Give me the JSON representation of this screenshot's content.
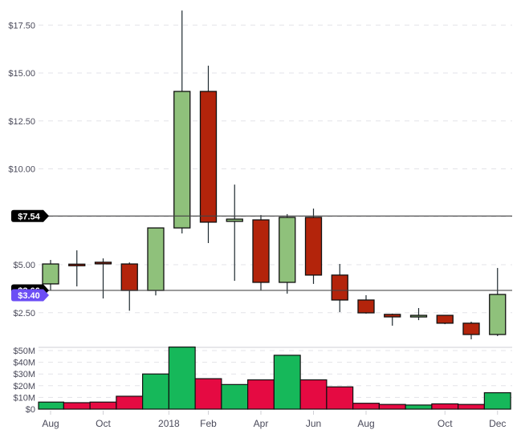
{
  "chart_data": {
    "type": "candlestick",
    "title": "",
    "xlabel": "",
    "ylabel": "",
    "price_axis": {
      "ticks": [
        "$2.50",
        "$5.00",
        "$7.50",
        "$10.00",
        "$12.50",
        "$15.00",
        "$17.50"
      ],
      "tick_values": [
        2.5,
        5,
        7.5,
        10,
        12.5,
        15,
        17.5
      ],
      "grid": "dashed",
      "position": "left"
    },
    "volume_axis": {
      "ticks": [
        "$0",
        "$10M",
        "$20M",
        "$30M",
        "$40M",
        "$50M"
      ],
      "tick_values": [
        0,
        10,
        20,
        30,
        40,
        50
      ],
      "unit": "millions USD"
    },
    "x_tick_labels": [
      {
        "label": "Aug",
        "index": 0
      },
      {
        "label": "Oct",
        "index": 2
      },
      {
        "label": "2018",
        "index": 4.5
      },
      {
        "label": "Feb",
        "index": 6
      },
      {
        "label": "Apr",
        "index": 8
      },
      {
        "label": "Jun",
        "index": 10
      },
      {
        "label": "Aug",
        "index": 12
      },
      {
        "label": "Oct",
        "index": 15
      },
      {
        "label": "Dec",
        "index": 17
      }
    ],
    "categories": [
      "2017-08",
      "2017-09",
      "2017-10",
      "2017-11",
      "2017-12",
      "2018-01",
      "2018-02",
      "2018-03",
      "2018-04",
      "2018-05",
      "2018-06",
      "2018-07",
      "2018-08",
      "2018-09",
      "2018-10",
      "2018-11",
      "2018-12a",
      "2018-12b"
    ],
    "series": [
      {
        "name": "OHLC",
        "values": [
          {
            "open": 4.0,
            "high": 5.25,
            "low": 3.66,
            "close": 5.04
          },
          {
            "open": 5.03,
            "high": 5.75,
            "low": 3.87,
            "close": 4.97
          },
          {
            "open": 5.13,
            "high": 5.33,
            "low": 3.24,
            "close": 5.05
          },
          {
            "open": 5.04,
            "high": 5.12,
            "low": 2.6,
            "close": 3.66
          },
          {
            "open": 3.66,
            "high": 6.92,
            "low": 3.4,
            "close": 6.92
          },
          {
            "open": 6.92,
            "high": 18.26,
            "low": 6.63,
            "close": 14.04
          },
          {
            "open": 14.04,
            "high": 15.38,
            "low": 6.13,
            "close": 7.22
          },
          {
            "open": 7.26,
            "high": 9.18,
            "low": 4.16,
            "close": 7.38
          },
          {
            "open": 7.34,
            "high": 7.59,
            "low": 3.66,
            "close": 4.08
          },
          {
            "open": 4.08,
            "high": 7.64,
            "low": 3.49,
            "close": 7.47
          },
          {
            "open": 7.47,
            "high": 7.93,
            "low": 4.0,
            "close": 4.46
          },
          {
            "open": 4.46,
            "high": 5.04,
            "low": 2.53,
            "close": 3.16
          },
          {
            "open": 3.16,
            "high": 3.41,
            "low": 2.45,
            "close": 2.49
          },
          {
            "open": 2.41,
            "high": 2.45,
            "low": 1.82,
            "close": 2.28
          },
          {
            "open": 2.28,
            "high": 2.74,
            "low": 2.11,
            "close": 2.36
          },
          {
            "open": 2.36,
            "high": 2.36,
            "low": 1.9,
            "close": 1.95
          },
          {
            "open": 1.95,
            "high": 2.03,
            "low": 1.11,
            "close": 1.36
          },
          {
            "open": 1.36,
            "high": 4.83,
            "low": 1.28,
            "close": 3.45
          }
        ]
      },
      {
        "name": "Volume",
        "unit": "M",
        "values": [
          6,
          5.5,
          6,
          11,
          30,
          53,
          26,
          21,
          25,
          46,
          25,
          19,
          5,
          4,
          3.5,
          4.5,
          4,
          14
        ]
      }
    ],
    "price_lines": [
      {
        "label": "$7.54",
        "value": 7.54,
        "color": "#000000"
      },
      {
        "label": "$3.66",
        "value": 3.66,
        "color": "#000000",
        "hidden_behind_tag": true
      },
      {
        "label": "$3.40",
        "value": 3.4,
        "color": "#6c4ef5"
      }
    ],
    "colors": {
      "up_candle": "#8fc17b",
      "down_candle": "#b3240b",
      "up_volume": "#16b85a",
      "down_volume": "#e50a42",
      "outline": "#111111",
      "wick": "#1f2a30",
      "grid": "#e3e3e8",
      "current_price_tag": "#6c4ef5"
    },
    "legend": null
  }
}
